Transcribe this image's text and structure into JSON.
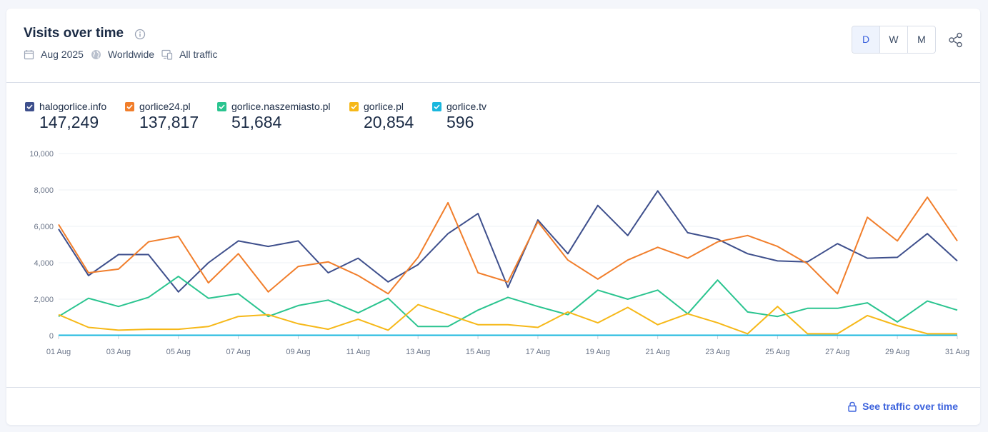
{
  "header": {
    "title": "Visits over time",
    "date": "Aug 2025",
    "region": "Worldwide",
    "traffic": "All traffic",
    "period_buttons": [
      "D",
      "W",
      "M"
    ],
    "active_period": "D"
  },
  "footer": {
    "cta_label": "See traffic over time"
  },
  "colors": {
    "accent": "#3d63dd",
    "grid": "#eef0f4",
    "axis": "#c9ced8"
  },
  "chart_data": {
    "type": "line",
    "ylim": [
      0,
      10000
    ],
    "y_ticks": [
      "10,000",
      "8,000",
      "6,000",
      "4,000",
      "2,000",
      "0"
    ],
    "x": [
      "01 Aug",
      "02 Aug",
      "03 Aug",
      "04 Aug",
      "05 Aug",
      "06 Aug",
      "07 Aug",
      "08 Aug",
      "09 Aug",
      "10 Aug",
      "11 Aug",
      "12 Aug",
      "13 Aug",
      "14 Aug",
      "15 Aug",
      "16 Aug",
      "17 Aug",
      "18 Aug",
      "19 Aug",
      "20 Aug",
      "21 Aug",
      "22 Aug",
      "23 Aug",
      "24 Aug",
      "25 Aug",
      "26 Aug",
      "27 Aug",
      "28 Aug",
      "29 Aug",
      "30 Aug",
      "31 Aug"
    ],
    "x_tick_labels": [
      "01 Aug",
      "03 Aug",
      "05 Aug",
      "07 Aug",
      "09 Aug",
      "11 Aug",
      "13 Aug",
      "15 Aug",
      "17 Aug",
      "19 Aug",
      "21 Aug",
      "23 Aug",
      "25 Aug",
      "27 Aug",
      "29 Aug",
      "31 Aug"
    ],
    "series": [
      {
        "name": "halogorlice.info",
        "total": "147,249",
        "color": "#3e4f8c",
        "values": [
          5850,
          3300,
          4450,
          4450,
          2400,
          4000,
          5200,
          4900,
          5200,
          3450,
          4250,
          2950,
          3900,
          5600,
          6700,
          2650,
          6350,
          4500,
          7150,
          5500,
          7950,
          5650,
          5300,
          4500,
          4100,
          4050,
          5050,
          4250,
          4300,
          5600,
          4100
        ]
      },
      {
        "name": "gorlice24.pl",
        "total": "137,817",
        "color": "#f17e2b",
        "values": [
          6100,
          3450,
          3650,
          5150,
          5450,
          2900,
          4500,
          2400,
          3800,
          4050,
          3300,
          2300,
          4300,
          7300,
          3450,
          2950,
          6250,
          4150,
          3100,
          4150,
          4850,
          4250,
          5150,
          5500,
          4900,
          3950,
          2300,
          6500,
          5200,
          7600,
          5200
        ]
      },
      {
        "name": "gorlice.naszemiasto.pl",
        "total": "51,684",
        "color": "#2ac48f",
        "values": [
          1050,
          2050,
          1600,
          2100,
          3250,
          2050,
          2300,
          1050,
          1650,
          1950,
          1250,
          2050,
          500,
          500,
          1400,
          2100,
          1600,
          1150,
          2500,
          2000,
          2500,
          1200,
          3050,
          1300,
          1050,
          1500,
          1500,
          1800,
          750,
          1900,
          1400
        ]
      },
      {
        "name": "gorlice.pl",
        "total": "20,854",
        "color": "#f6b818",
        "values": [
          1150,
          450,
          300,
          350,
          350,
          500,
          1050,
          1150,
          650,
          350,
          900,
          300,
          1700,
          1150,
          600,
          600,
          450,
          1300,
          700,
          1550,
          600,
          1200,
          700,
          100,
          1600,
          100,
          100,
          1100,
          550,
          100,
          100
        ]
      },
      {
        "name": "gorlice.tv",
        "total": "596",
        "color": "#1ab7de",
        "values": [
          20,
          20,
          20,
          20,
          20,
          20,
          20,
          20,
          20,
          20,
          20,
          20,
          20,
          20,
          20,
          20,
          20,
          20,
          20,
          20,
          20,
          20,
          20,
          20,
          20,
          20,
          20,
          20,
          20,
          20,
          20
        ]
      }
    ]
  }
}
